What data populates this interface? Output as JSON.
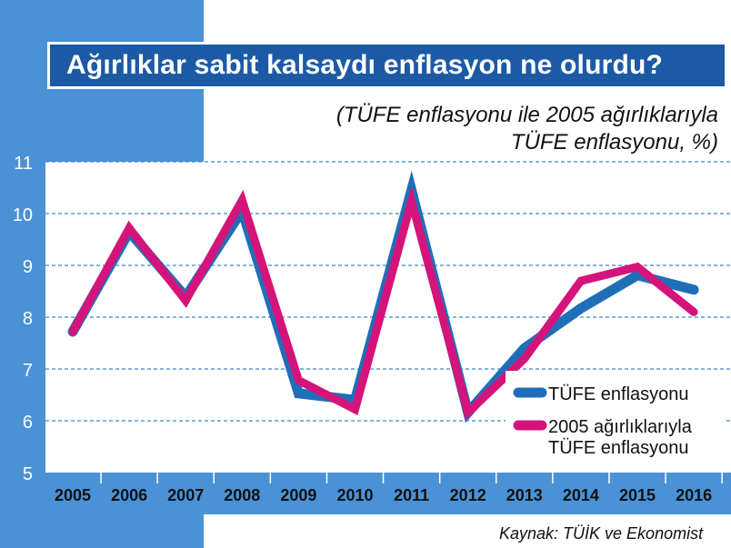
{
  "title": "Ağırlıklar sabit kalsaydı enflasyon ne olurdu?",
  "subtitle_line1": "(TÜFE enflasyonu ile 2005 ağırlıklarıyla",
  "subtitle_line2": "TÜFE enflasyonu, %)",
  "source": "Kaynak: TÜİK ve Ekonomist",
  "colors": {
    "background_accent": "#4a92d6",
    "title_bg": "#1c5aa6",
    "series1": "#1f6fb8",
    "series2": "#d4147a",
    "grid": "#3f86c8"
  },
  "chart_data": {
    "type": "line",
    "categories": [
      "2005",
      "2006",
      "2007",
      "2008",
      "2009",
      "2010",
      "2011",
      "2012",
      "2013",
      "2014",
      "2015",
      "2016"
    ],
    "ylim": [
      5,
      11
    ],
    "yticks": [
      "5",
      "6",
      "7",
      "8",
      "9",
      "10",
      "11"
    ],
    "grid": true,
    "legend_position": "bottom-right",
    "series": [
      {
        "name": "TÜFE enflasyonu",
        "color": "#1f6fb8",
        "values": [
          7.72,
          9.65,
          8.39,
          10.06,
          6.53,
          6.4,
          10.45,
          6.16,
          7.4,
          8.17,
          8.81,
          8.53
        ]
      },
      {
        "name": "2005 ağırlıklarıyla TÜFE enflasyonu",
        "color": "#d4147a",
        "values": [
          7.72,
          9.72,
          8.32,
          10.26,
          6.78,
          6.22,
          10.24,
          6.16,
          7.2,
          8.7,
          8.97,
          8.1
        ]
      }
    ],
    "legend": [
      {
        "line1": "TÜFE enflasyonu",
        "line2": ""
      },
      {
        "line1": "2005 ağırlıklarıyla",
        "line2": "TÜFE enflasyonu"
      }
    ]
  }
}
